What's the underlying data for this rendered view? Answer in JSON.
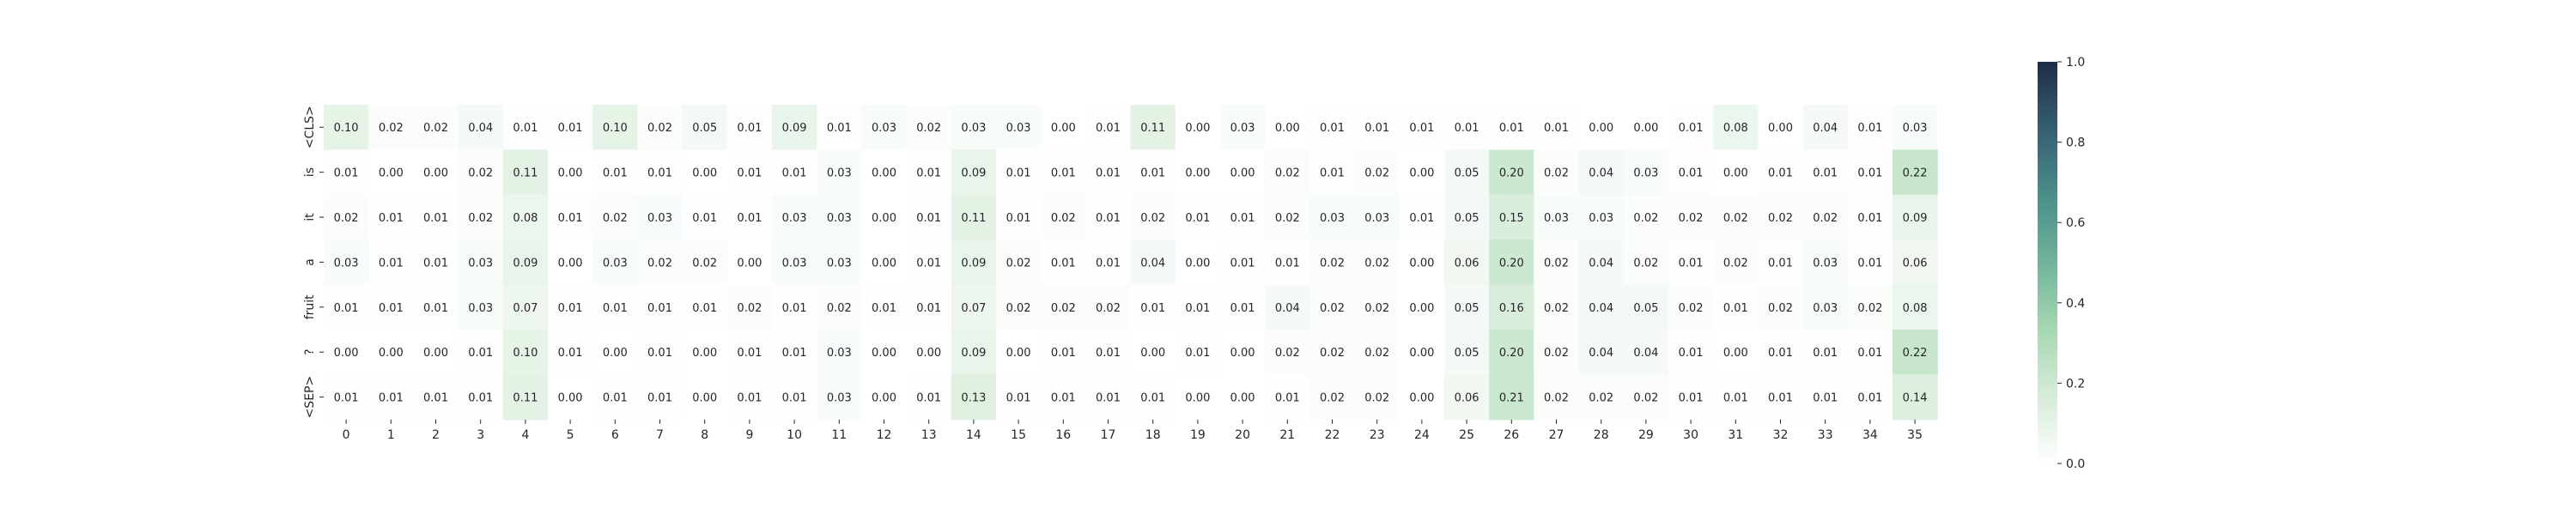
{
  "chart_data": {
    "type": "heatmap",
    "title": "",
    "xlabel": "",
    "ylabel": "",
    "x_labels": [
      "0",
      "1",
      "2",
      "3",
      "4",
      "5",
      "6",
      "7",
      "8",
      "9",
      "10",
      "11",
      "12",
      "13",
      "14",
      "15",
      "16",
      "17",
      "18",
      "19",
      "20",
      "21",
      "22",
      "23",
      "24",
      "25",
      "26",
      "27",
      "28",
      "29",
      "30",
      "31",
      "32",
      "33",
      "34",
      "35"
    ],
    "y_labels": [
      "<CLS>",
      "is",
      "it",
      "a",
      "fruit",
      "?",
      "<SEP>"
    ],
    "values": [
      [
        0.1,
        0.02,
        0.02,
        0.04,
        0.01,
        0.01,
        0.1,
        0.02,
        0.05,
        0.01,
        0.09,
        0.01,
        0.03,
        0.02,
        0.03,
        0.03,
        0.0,
        0.01,
        0.11,
        0.0,
        0.03,
        0.0,
        0.01,
        0.01,
        0.01,
        0.01,
        0.01,
        0.01,
        0.0,
        0.0,
        0.01,
        0.08,
        0.0,
        0.04,
        0.01,
        0.03
      ],
      [
        0.01,
        0.0,
        0.0,
        0.02,
        0.11,
        0.0,
        0.01,
        0.01,
        0.0,
        0.01,
        0.01,
        0.03,
        0.0,
        0.01,
        0.09,
        0.01,
        0.01,
        0.01,
        0.01,
        0.0,
        0.0,
        0.02,
        0.01,
        0.02,
        0.0,
        0.05,
        0.2,
        0.02,
        0.04,
        0.03,
        0.01,
        0.0,
        0.01,
        0.01,
        0.01,
        0.22
      ],
      [
        0.02,
        0.01,
        0.01,
        0.02,
        0.08,
        0.01,
        0.02,
        0.03,
        0.01,
        0.01,
        0.03,
        0.03,
        0.0,
        0.01,
        0.11,
        0.01,
        0.02,
        0.01,
        0.02,
        0.01,
        0.01,
        0.02,
        0.03,
        0.03,
        0.01,
        0.05,
        0.15,
        0.03,
        0.03,
        0.02,
        0.02,
        0.02,
        0.02,
        0.02,
        0.01,
        0.09
      ],
      [
        0.03,
        0.01,
        0.01,
        0.03,
        0.09,
        0.0,
        0.03,
        0.02,
        0.02,
        0.0,
        0.03,
        0.03,
        0.0,
        0.01,
        0.09,
        0.02,
        0.01,
        0.01,
        0.04,
        0.0,
        0.01,
        0.01,
        0.02,
        0.02,
        0.0,
        0.06,
        0.2,
        0.02,
        0.04,
        0.02,
        0.01,
        0.02,
        0.01,
        0.03,
        0.01,
        0.06
      ],
      [
        0.01,
        0.01,
        0.01,
        0.03,
        0.07,
        0.01,
        0.01,
        0.01,
        0.01,
        0.02,
        0.01,
        0.02,
        0.01,
        0.01,
        0.07,
        0.02,
        0.02,
        0.02,
        0.01,
        0.01,
        0.01,
        0.04,
        0.02,
        0.02,
        0.0,
        0.05,
        0.16,
        0.02,
        0.04,
        0.05,
        0.02,
        0.01,
        0.02,
        0.03,
        0.02,
        0.08
      ],
      [
        0.0,
        0.0,
        0.0,
        0.01,
        0.1,
        0.01,
        0.0,
        0.01,
        0.0,
        0.01,
        0.01,
        0.03,
        0.0,
        0.0,
        0.09,
        0.0,
        0.01,
        0.01,
        0.0,
        0.01,
        0.0,
        0.02,
        0.02,
        0.02,
        0.0,
        0.05,
        0.2,
        0.02,
        0.04,
        0.04,
        0.01,
        0.0,
        0.01,
        0.01,
        0.01,
        0.22
      ],
      [
        0.01,
        0.01,
        0.01,
        0.01,
        0.11,
        0.0,
        0.01,
        0.01,
        0.0,
        0.01,
        0.01,
        0.03,
        0.0,
        0.01,
        0.13,
        0.01,
        0.01,
        0.01,
        0.01,
        0.0,
        0.0,
        0.01,
        0.02,
        0.02,
        0.0,
        0.06,
        0.21,
        0.02,
        0.02,
        0.02,
        0.01,
        0.01,
        0.01,
        0.01,
        0.01,
        0.14
      ]
    ],
    "value_format": "0.00",
    "colorbar": {
      "min": 0.0,
      "max": 1.0,
      "ticks": [
        "0.0",
        "0.2",
        "0.4",
        "0.6",
        "0.8",
        "1.0"
      ],
      "colors": [
        "#ffffff",
        "#d6ecd9",
        "#a6d8b1",
        "#6fb49b",
        "#4a8e89",
        "#355f72",
        "#1e2c45"
      ]
    },
    "grid": false,
    "legend": "colorbar-right"
  }
}
